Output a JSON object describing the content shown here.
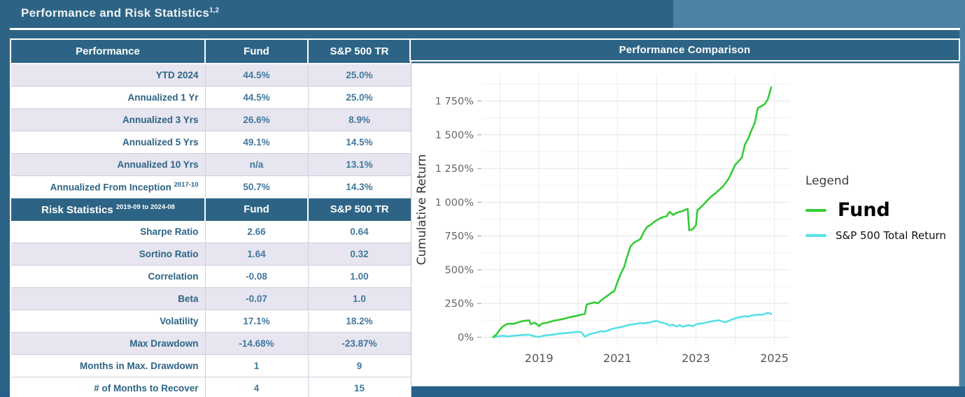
{
  "page": {
    "title": "Performance and Risk Statistics",
    "title_sup": "1,2"
  },
  "colors": {
    "background": "#2d6485",
    "panel_light": "#4d82a4",
    "bottom_band": "#28618a",
    "header_bg": "#2d6485",
    "row_shade": "#e6e5f0",
    "label_text": "#2d6485",
    "value_text": "#41789d",
    "fund_line": "#33cc33",
    "sp_line": "#55e0e6"
  },
  "table": {
    "header": {
      "col1": "Performance",
      "col2": "Fund",
      "col3": "S&P 500 TR"
    },
    "rows": [
      {
        "label": "YTD 2024",
        "sup": "",
        "fund": "44.5%",
        "sp": "25.0%",
        "shade": true
      },
      {
        "label": "Annualized 1 Yr",
        "sup": "",
        "fund": "44.5%",
        "sp": "25.0%",
        "shade": false
      },
      {
        "label": "Annualized 3 Yrs",
        "sup": "",
        "fund": "26.6%",
        "sp": "8.9%",
        "shade": true
      },
      {
        "label": "Annualized 5 Yrs",
        "sup": "",
        "fund": "49.1%",
        "sp": "14.5%",
        "shade": false
      },
      {
        "label": "Annualized 10 Yrs",
        "sup": "",
        "fund": "n/a",
        "sp": "13.1%",
        "shade": true
      },
      {
        "label": "Annualized From Inception",
        "sup": "2017-10",
        "fund": "50.7%",
        "sp": "14.3%",
        "shade": false
      },
      {
        "type": "section",
        "label": "Risk Statistics",
        "sup": "2019-09 to 2024-08",
        "fund": "Fund",
        "sp": "S&P 500 TR"
      },
      {
        "label": "Sharpe Ratio",
        "sup": "",
        "fund": "2.66",
        "sp": "0.64",
        "shade": false
      },
      {
        "label": "Sortino Ratio",
        "sup": "",
        "fund": "1.64",
        "sp": "0.32",
        "shade": true
      },
      {
        "label": "Correlation",
        "sup": "",
        "fund": "-0.08",
        "sp": "1.00",
        "shade": false
      },
      {
        "label": "Beta",
        "sup": "",
        "fund": "-0.07",
        "sp": "1.0",
        "shade": true
      },
      {
        "label": "Volatility",
        "sup": "",
        "fund": "17.1%",
        "sp": "18.2%",
        "shade": false
      },
      {
        "label": "Max Drawdown",
        "sup": "",
        "fund": "-14.68%",
        "sp": "-23.87%",
        "shade": true
      },
      {
        "label": "Months in Max. Drawdown",
        "sup": "",
        "fund": "1",
        "sp": "9",
        "shade": false
      },
      {
        "label": "# of Months to Recover",
        "sup": "",
        "fund": "4",
        "sp": "15",
        "shade": false
      }
    ]
  },
  "chart": {
    "header": "Performance Comparison",
    "legend": {
      "title": "Legend",
      "items": [
        {
          "label": "Fund",
          "color": "#33cc33",
          "big": true
        },
        {
          "label": "S&P 500 Total Return",
          "color": "#55e0e6",
          "big": false
        }
      ]
    }
  },
  "chart_data": {
    "type": "line",
    "title": "Performance Comparison",
    "xlabel": "",
    "ylabel": "Cumulative Return",
    "xlim": [
      2017.55,
      2025.4
    ],
    "ylim": [
      -60,
      1950
    ],
    "grid": true,
    "legend_position": "right",
    "x_ticks": [
      {
        "v": 2019,
        "label": "2019"
      },
      {
        "v": 2021,
        "label": "2021"
      },
      {
        "v": 2023,
        "label": "2023"
      },
      {
        "v": 2025,
        "label": "2025"
      }
    ],
    "y_ticks": [
      {
        "v": 0,
        "label": "0%"
      },
      {
        "v": 250,
        "label": "250%"
      },
      {
        "v": 500,
        "label": "500%"
      },
      {
        "v": 750,
        "label": "750%"
      },
      {
        "v": 1000,
        "label": "1 000%"
      },
      {
        "v": 1250,
        "label": "1 250%"
      },
      {
        "v": 1500,
        "label": "1 500%"
      },
      {
        "v": 1750,
        "label": "1 750%"
      }
    ],
    "grid_years": [
      2018,
      2019,
      2020,
      2021,
      2022,
      2023,
      2024,
      2025
    ],
    "minor_y": [
      125,
      375,
      625,
      875,
      1125,
      1375,
      1625,
      1875
    ],
    "series": [
      {
        "name": "S&P 500 Total Return",
        "color": "#55e0e6",
        "points": [
          [
            2017.83,
            0
          ],
          [
            2017.92,
            4
          ],
          [
            2018.0,
            8
          ],
          [
            2018.08,
            11
          ],
          [
            2018.17,
            6
          ],
          [
            2018.25,
            8
          ],
          [
            2018.33,
            10
          ],
          [
            2018.42,
            12
          ],
          [
            2018.5,
            14
          ],
          [
            2018.58,
            16
          ],
          [
            2018.67,
            17
          ],
          [
            2018.75,
            18
          ],
          [
            2018.83,
            11
          ],
          [
            2018.92,
            5
          ],
          [
            2019.0,
            1
          ],
          [
            2019.08,
            9
          ],
          [
            2019.17,
            13
          ],
          [
            2019.25,
            16
          ],
          [
            2019.33,
            18
          ],
          [
            2019.42,
            21
          ],
          [
            2019.5,
            26
          ],
          [
            2019.58,
            28
          ],
          [
            2019.67,
            30
          ],
          [
            2019.75,
            32
          ],
          [
            2019.83,
            35
          ],
          [
            2019.92,
            38
          ],
          [
            2020.0,
            40
          ],
          [
            2020.08,
            36
          ],
          [
            2020.17,
            3
          ],
          [
            2020.25,
            16
          ],
          [
            2020.33,
            26
          ],
          [
            2020.42,
            31
          ],
          [
            2020.5,
            38
          ],
          [
            2020.58,
            44
          ],
          [
            2020.67,
            42
          ],
          [
            2020.75,
            47
          ],
          [
            2020.83,
            59
          ],
          [
            2020.92,
            65
          ],
          [
            2021.0,
            70
          ],
          [
            2021.08,
            74
          ],
          [
            2021.17,
            80
          ],
          [
            2021.25,
            88
          ],
          [
            2021.33,
            92
          ],
          [
            2021.42,
            96
          ],
          [
            2021.5,
            100
          ],
          [
            2021.58,
            104
          ],
          [
            2021.67,
            102
          ],
          [
            2021.75,
            107
          ],
          [
            2021.83,
            110
          ],
          [
            2021.92,
            117
          ],
          [
            2022.0,
            122
          ],
          [
            2022.08,
            111
          ],
          [
            2022.17,
            105
          ],
          [
            2022.25,
            99
          ],
          [
            2022.33,
            87
          ],
          [
            2022.42,
            93
          ],
          [
            2022.5,
            79
          ],
          [
            2022.58,
            89
          ],
          [
            2022.67,
            78
          ],
          [
            2022.75,
            85
          ],
          [
            2022.83,
            89
          ],
          [
            2022.92,
            82
          ],
          [
            2023.0,
            95
          ],
          [
            2023.08,
            99
          ],
          [
            2023.17,
            103
          ],
          [
            2023.25,
            108
          ],
          [
            2023.33,
            113
          ],
          [
            2023.42,
            118
          ],
          [
            2023.5,
            122
          ],
          [
            2023.58,
            125
          ],
          [
            2023.67,
            117
          ],
          [
            2023.75,
            111
          ],
          [
            2023.83,
            119
          ],
          [
            2023.92,
            131
          ],
          [
            2024.0,
            139
          ],
          [
            2024.08,
            146
          ],
          [
            2024.17,
            151
          ],
          [
            2024.25,
            156
          ],
          [
            2024.33,
            152
          ],
          [
            2024.42,
            160
          ],
          [
            2024.5,
            164
          ],
          [
            2024.58,
            168
          ],
          [
            2024.67,
            165
          ],
          [
            2024.75,
            172
          ],
          [
            2024.83,
            181
          ],
          [
            2024.92,
            173
          ]
        ]
      },
      {
        "name": "Fund",
        "color": "#33cc33",
        "points": [
          [
            2017.83,
            0
          ],
          [
            2017.92,
            22
          ],
          [
            2018.0,
            55
          ],
          [
            2018.08,
            80
          ],
          [
            2018.17,
            96
          ],
          [
            2018.25,
            101
          ],
          [
            2018.33,
            98
          ],
          [
            2018.42,
            105
          ],
          [
            2018.5,
            112
          ],
          [
            2018.58,
            119
          ],
          [
            2018.67,
            123
          ],
          [
            2018.75,
            125
          ],
          [
            2018.79,
            96
          ],
          [
            2018.88,
            108
          ],
          [
            2018.96,
            94
          ],
          [
            2019.0,
            82
          ],
          [
            2019.08,
            101
          ],
          [
            2019.17,
            106
          ],
          [
            2019.25,
            111
          ],
          [
            2019.33,
            118
          ],
          [
            2019.42,
            125
          ],
          [
            2019.5,
            128
          ],
          [
            2019.58,
            133
          ],
          [
            2019.67,
            139
          ],
          [
            2019.75,
            146
          ],
          [
            2019.83,
            151
          ],
          [
            2019.92,
            156
          ],
          [
            2020.0,
            161
          ],
          [
            2020.08,
            168
          ],
          [
            2020.17,
            172
          ],
          [
            2020.21,
            238
          ],
          [
            2020.25,
            246
          ],
          [
            2020.33,
            252
          ],
          [
            2020.42,
            258
          ],
          [
            2020.5,
            251
          ],
          [
            2020.58,
            272
          ],
          [
            2020.67,
            293
          ],
          [
            2020.75,
            308
          ],
          [
            2020.83,
            326
          ],
          [
            2020.92,
            342
          ],
          [
            2021.0,
            410
          ],
          [
            2021.08,
            468
          ],
          [
            2021.17,
            520
          ],
          [
            2021.25,
            600
          ],
          [
            2021.33,
            672
          ],
          [
            2021.42,
            700
          ],
          [
            2021.5,
            714
          ],
          [
            2021.58,
            726
          ],
          [
            2021.67,
            778
          ],
          [
            2021.75,
            816
          ],
          [
            2021.83,
            830
          ],
          [
            2021.92,
            851
          ],
          [
            2022.0,
            866
          ],
          [
            2022.08,
            880
          ],
          [
            2022.17,
            891
          ],
          [
            2022.25,
            896
          ],
          [
            2022.33,
            929
          ],
          [
            2022.42,
            906
          ],
          [
            2022.5,
            921
          ],
          [
            2022.58,
            929
          ],
          [
            2022.67,
            936
          ],
          [
            2022.75,
            947
          ],
          [
            2022.79,
            951
          ],
          [
            2022.83,
            792
          ],
          [
            2022.92,
            801
          ],
          [
            2023.0,
            829
          ],
          [
            2023.04,
            944
          ],
          [
            2023.08,
            951
          ],
          [
            2023.17,
            976
          ],
          [
            2023.25,
            1001
          ],
          [
            2023.33,
            1026
          ],
          [
            2023.42,
            1049
          ],
          [
            2023.5,
            1066
          ],
          [
            2023.58,
            1089
          ],
          [
            2023.67,
            1111
          ],
          [
            2023.75,
            1141
          ],
          [
            2023.83,
            1172
          ],
          [
            2023.92,
            1226
          ],
          [
            2024.0,
            1277
          ],
          [
            2024.08,
            1302
          ],
          [
            2024.17,
            1331
          ],
          [
            2024.25,
            1428
          ],
          [
            2024.33,
            1469
          ],
          [
            2024.42,
            1536
          ],
          [
            2024.5,
            1588
          ],
          [
            2024.58,
            1700
          ],
          [
            2024.67,
            1712
          ],
          [
            2024.75,
            1727
          ],
          [
            2024.83,
            1762
          ],
          [
            2024.92,
            1852
          ]
        ]
      }
    ]
  }
}
